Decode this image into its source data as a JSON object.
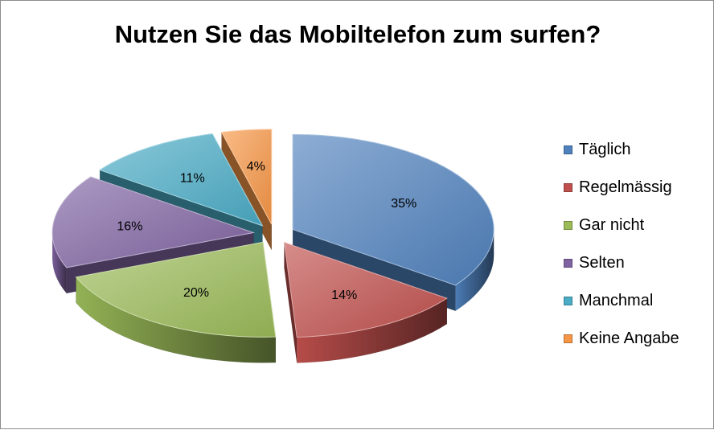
{
  "chart_data": {
    "type": "pie",
    "title": "Nutzen Sie das Mobiltelefon zum surfen?",
    "categories": [
      "Täglich",
      "Regelmässig",
      "Gar nicht",
      "Selten",
      "Manchmal",
      "Keine Angabe"
    ],
    "values": [
      35,
      14,
      20,
      16,
      11,
      4
    ],
    "data_labels": [
      "35%",
      "14%",
      "20%",
      "16%",
      "11%",
      "4%"
    ],
    "colors": [
      "#4f81bd",
      "#c0504d",
      "#9bbb59",
      "#8064a2",
      "#4bacc6",
      "#f79646"
    ],
    "exploded": true,
    "style": "3d",
    "legend_position": "right"
  }
}
